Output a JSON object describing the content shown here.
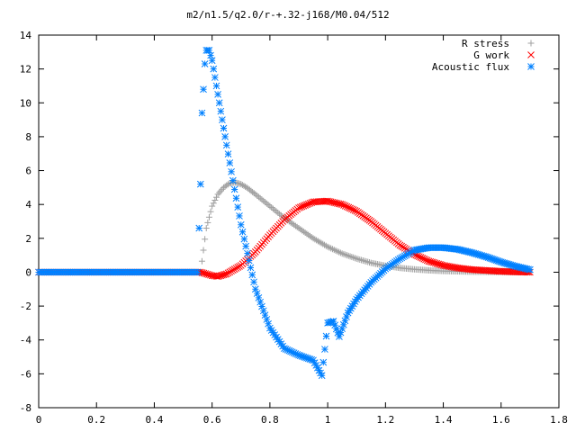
{
  "chart_data": {
    "type": "scatter",
    "title": "m2/n1.5/q2.0/r-+.32-j168/M0.04/512",
    "xlabel": "",
    "ylabel": "",
    "xlim": [
      0,
      1.8
    ],
    "ylim": [
      -8,
      14
    ],
    "xticks": [
      "0",
      "0.2",
      "0.4",
      "0.6",
      "0.8",
      "1",
      "1.2",
      "1.4",
      "1.6",
      "1.8"
    ],
    "yticks": [
      "-8",
      "-6",
      "-4",
      "-2",
      "0",
      "2",
      "4",
      "6",
      "8",
      "10",
      "12",
      "14"
    ],
    "grid": false,
    "legend_position": "top-right",
    "series": [
      {
        "name": "R stress",
        "marker": "+",
        "color": "#a0a0a0",
        "x": [
          0.0,
          0.56,
          0.58,
          0.6,
          0.62,
          0.64,
          0.66,
          0.68,
          0.7,
          0.72,
          0.75,
          0.8,
          0.85,
          0.9,
          0.95,
          1.0,
          1.05,
          1.1,
          1.15,
          1.2,
          1.25,
          1.3,
          1.35,
          1.4,
          1.45,
          1.5,
          1.55,
          1.6,
          1.65,
          1.7
        ],
        "y": [
          0.0,
          0.0,
          2.6,
          3.9,
          4.6,
          5.0,
          5.25,
          5.3,
          5.2,
          5.0,
          4.6,
          3.9,
          3.2,
          2.6,
          2.0,
          1.5,
          1.1,
          0.8,
          0.55,
          0.38,
          0.25,
          0.17,
          0.11,
          0.07,
          0.05,
          0.03,
          0.02,
          0.01,
          0.0,
          0.0
        ]
      },
      {
        "name": "G work",
        "marker": "x",
        "color": "#ff0000",
        "x": [
          0.0,
          0.56,
          0.6,
          0.62,
          0.65,
          0.7,
          0.75,
          0.8,
          0.85,
          0.9,
          0.95,
          1.0,
          1.05,
          1.1,
          1.15,
          1.2,
          1.25,
          1.3,
          1.35,
          1.4,
          1.45,
          1.5,
          1.55,
          1.6,
          1.65,
          1.7
        ],
        "y": [
          0.0,
          0.0,
          -0.2,
          -0.25,
          -0.1,
          0.4,
          1.2,
          2.2,
          3.1,
          3.8,
          4.15,
          4.2,
          4.0,
          3.6,
          3.0,
          2.3,
          1.6,
          1.05,
          0.65,
          0.4,
          0.25,
          0.15,
          0.1,
          0.05,
          0.02,
          0.0
        ]
      },
      {
        "name": "Acoustic flux",
        "marker": "*",
        "color": "#0080ff",
        "x": [
          0.0,
          0.55,
          0.56,
          0.565,
          0.57,
          0.575,
          0.58,
          0.59,
          0.6,
          0.62,
          0.65,
          0.7,
          0.75,
          0.8,
          0.85,
          0.9,
          0.95,
          0.98,
          1.0,
          1.02,
          1.04,
          1.07,
          1.1,
          1.15,
          1.2,
          1.25,
          1.3,
          1.35,
          1.4,
          1.45,
          1.5,
          1.55,
          1.6,
          1.65,
          1.7
        ],
        "y": [
          0.0,
          0.0,
          5.2,
          9.4,
          10.8,
          12.3,
          13.1,
          13.1,
          12.5,
          10.5,
          7.5,
          2.8,
          -1.0,
          -3.3,
          -4.5,
          -4.9,
          -5.2,
          -6.1,
          -3.0,
          -2.9,
          -3.8,
          -2.4,
          -1.6,
          -0.6,
          0.2,
          0.8,
          1.3,
          1.45,
          1.45,
          1.35,
          1.15,
          0.9,
          0.6,
          0.35,
          0.15
        ]
      }
    ]
  }
}
